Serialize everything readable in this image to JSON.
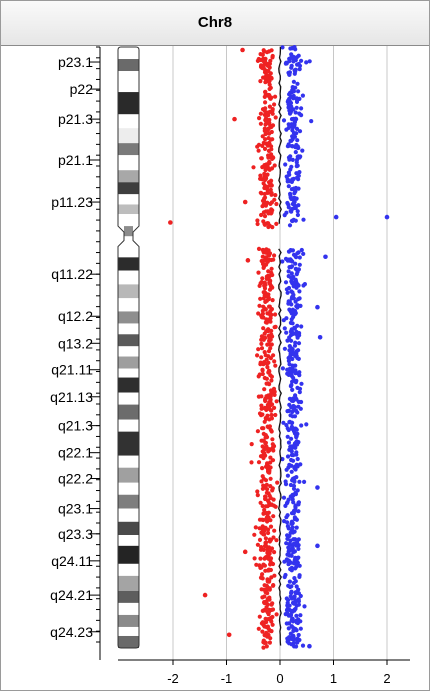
{
  "chart_data": {
    "type": "scatter",
    "title": "Chr8",
    "xlabel": "",
    "ylabel": "",
    "xlim": [
      -2.8,
      3.0
    ],
    "grid": true,
    "x_ticks": [
      {
        "value": -2,
        "label": "-2"
      },
      {
        "value": -1,
        "label": "-1"
      },
      {
        "value": 0,
        "label": "0"
      },
      {
        "value": 1,
        "label": "1"
      },
      {
        "value": 2,
        "label": "2"
      }
    ],
    "bands": [
      {
        "label": "p23.1",
        "pos": 0.025
      },
      {
        "label": "p22",
        "pos": 0.07
      },
      {
        "label": "p21.3",
        "pos": 0.12
      },
      {
        "label": "p21.1",
        "pos": 0.188
      },
      {
        "label": "p11.23",
        "pos": 0.258
      },
      {
        "label": "q11.22",
        "pos": 0.378
      },
      {
        "label": "q12.2",
        "pos": 0.448
      },
      {
        "label": "q13.2",
        "pos": 0.493
      },
      {
        "label": "q21.11",
        "pos": 0.537
      },
      {
        "label": "q21.13",
        "pos": 0.582
      },
      {
        "label": "q21.3",
        "pos": 0.63
      },
      {
        "label": "q22.1",
        "pos": 0.675
      },
      {
        "label": "q22.2",
        "pos": 0.718
      },
      {
        "label": "q23.1",
        "pos": 0.768
      },
      {
        "label": "q23.3",
        "pos": 0.81
      },
      {
        "label": "q24.11",
        "pos": 0.855
      },
      {
        "label": "q24.21",
        "pos": 0.912
      },
      {
        "label": "q24.23",
        "pos": 0.973
      }
    ],
    "series": [
      {
        "color": "#ee2222"
      },
      {
        "color": "#3333ee"
      }
    ],
    "highlighted_points": [
      {
        "x": -0.7,
        "pos": 0.005,
        "color": "#ee2222"
      },
      {
        "x": -0.85,
        "pos": 0.12,
        "color": "#ee2222"
      },
      {
        "x": -2.05,
        "pos": 0.292,
        "color": "#ee2222"
      },
      {
        "x": -0.65,
        "pos": 0.258,
        "color": "#ee2222"
      },
      {
        "x": 1.05,
        "pos": 0.283,
        "color": "#3333ee"
      },
      {
        "x": 2.0,
        "pos": 0.283,
        "color": "#3333ee"
      },
      {
        "x": 0.85,
        "pos": 0.349,
        "color": "#3333ee"
      },
      {
        "x": -0.6,
        "pos": 0.355,
        "color": "#ee2222"
      },
      {
        "x": 0.7,
        "pos": 0.433,
        "color": "#3333ee"
      },
      {
        "x": 0.75,
        "pos": 0.483,
        "color": "#3333ee"
      },
      {
        "x": 0.7,
        "pos": 0.733,
        "color": "#3333ee"
      },
      {
        "x": 0.7,
        "pos": 0.83,
        "color": "#3333ee"
      },
      {
        "x": -0.65,
        "pos": 0.84,
        "color": "#ee2222"
      },
      {
        "x": -1.4,
        "pos": 0.912,
        "color": "#ee2222"
      },
      {
        "x": -0.95,
        "pos": 0.978,
        "color": "#ee2222"
      },
      {
        "x": 0.55,
        "pos": 0.997,
        "color": "#3333ee"
      }
    ]
  }
}
